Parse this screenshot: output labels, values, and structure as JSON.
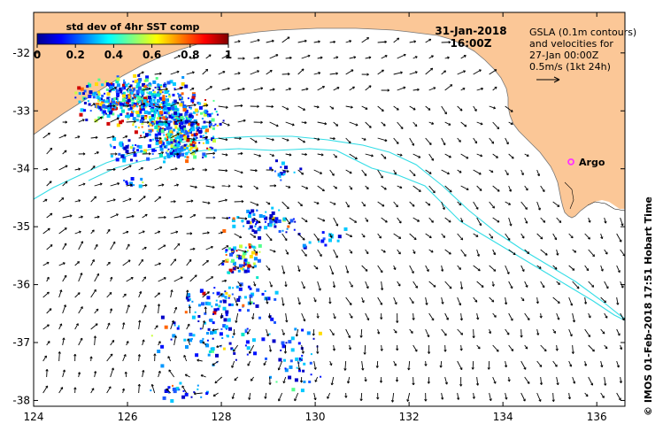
{
  "map": {
    "date_label": "31-Jan-2018",
    "time_label": "16:00Z",
    "gsla_note_lines": [
      "GSLA (0.1m contours)",
      "and velocities for",
      "27-Jan 00:00Z",
      "0.5m/s (1kt 24h)"
    ],
    "argo_label": "Argo",
    "credit": "© IMOS 01-Feb-2018 17:51 Hobart Time",
    "colorbar": {
      "title": "std dev of 4hr SST comp",
      "ticks": [
        "0",
        "0.2",
        "0.4",
        "0.6",
        "0.8",
        "1"
      ]
    },
    "lon_ticks": [
      "124",
      "126",
      "128",
      "130",
      "132",
      "134",
      "136"
    ],
    "lat_ticks": [
      "-32",
      "-33",
      "-34",
      "-35",
      "-36",
      "-37",
      "-38"
    ],
    "lon_range": [
      124,
      136.6
    ],
    "lat_range": [
      -38.1,
      -31.3
    ],
    "argo_position": {
      "lon": 135.45,
      "lat": -33.88
    },
    "colors": {
      "land": "#fbc797",
      "contour": "#33dde6",
      "argo": "#ff33ff",
      "arrow": "#000000"
    }
  }
}
